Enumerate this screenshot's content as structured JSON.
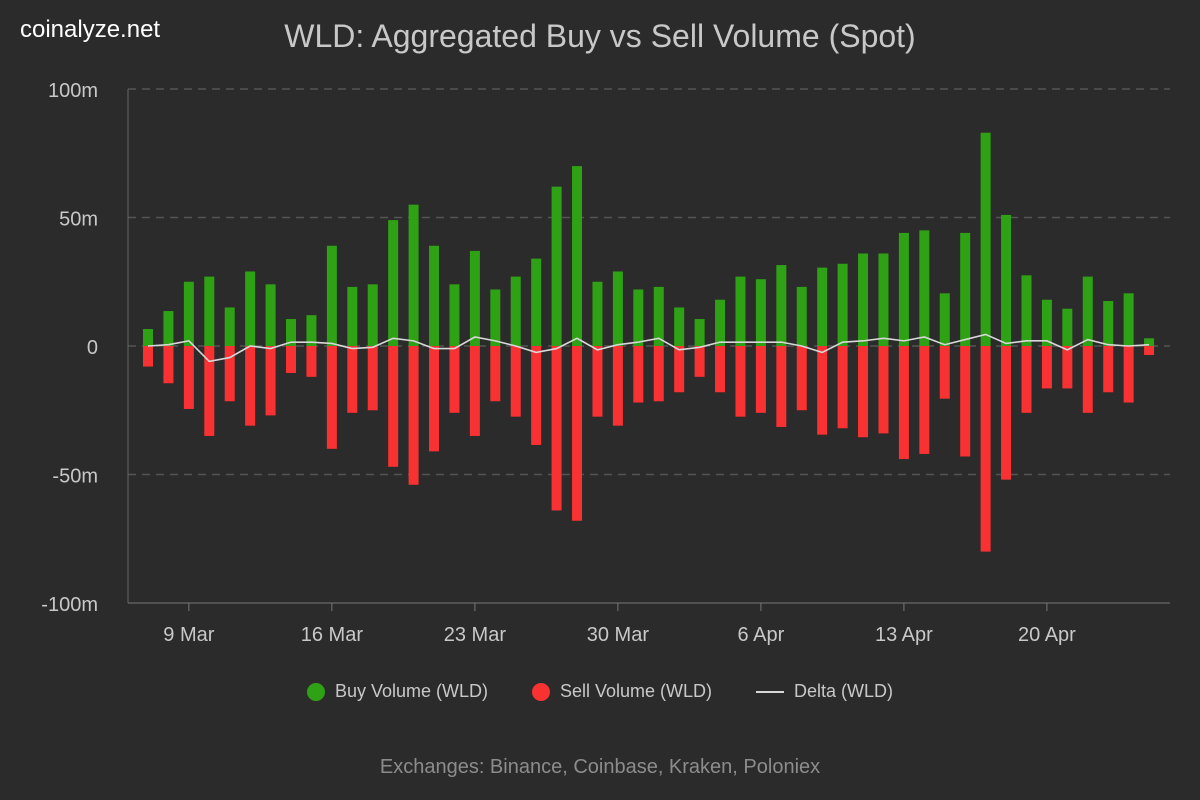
{
  "brand": "coinalyze.net",
  "chart_data": {
    "type": "bar",
    "title": "WLD: Aggregated Buy vs Sell Volume (Spot)",
    "footer": "Exchanges: Binance, Coinbase, Kraken, Poloniex",
    "categories": [
      "7 Mar",
      "8 Mar",
      "9 Mar",
      "10 Mar",
      "11 Mar",
      "12 Mar",
      "13 Mar",
      "14 Mar",
      "15 Mar",
      "16 Mar",
      "17 Mar",
      "18 Mar",
      "19 Mar",
      "20 Mar",
      "21 Mar",
      "22 Mar",
      "23 Mar",
      "24 Mar",
      "25 Mar",
      "26 Mar",
      "27 Mar",
      "28 Mar",
      "29 Mar",
      "30 Mar",
      "31 Mar",
      "1 Apr",
      "2 Apr",
      "3 Apr",
      "4 Apr",
      "5 Apr",
      "6 Apr",
      "7 Apr",
      "8 Apr",
      "9 Apr",
      "10 Apr",
      "11 Apr",
      "12 Apr",
      "13 Apr",
      "14 Apr",
      "15 Apr",
      "16 Apr",
      "17 Apr",
      "18 Apr",
      "19 Apr",
      "20 Apr",
      "21 Apr",
      "22 Apr",
      "23 Apr",
      "24 Apr",
      "25 Apr"
    ],
    "x_tick_labels": [
      "9 Mar",
      "16 Mar",
      "23 Mar",
      "30 Mar",
      "6 Apr",
      "13 Apr",
      "20 Apr"
    ],
    "y_tick_labels": [
      "100m",
      "50m",
      "0",
      "-50m",
      "-100m"
    ],
    "ylim": [
      -100,
      100
    ],
    "y_unit": "m",
    "grid": true,
    "legend_position": "bottom",
    "series": [
      {
        "name": "Buy Volume (WLD)",
        "color": "#2fa115",
        "type": "bar",
        "values": [
          6.6,
          13.6,
          25,
          27,
          15,
          29,
          24,
          10.5,
          12,
          39,
          23,
          24,
          49,
          55,
          39,
          24,
          37,
          22,
          27,
          34,
          62,
          70,
          25,
          29,
          22,
          23,
          15,
          10.5,
          18,
          27,
          26,
          31.5,
          23,
          30.5,
          32,
          36,
          36,
          44,
          45,
          20.5,
          44,
          83,
          51,
          27.5,
          18,
          14.5,
          27,
          17.5,
          20.5,
          3
        ]
      },
      {
        "name": "Sell Volume (WLD)",
        "color": "#f83232",
        "type": "bar",
        "values": [
          -8,
          -14.5,
          -24.5,
          -35,
          -21.5,
          -31,
          -27,
          -10.5,
          -12,
          -40,
          -26,
          -25,
          -47,
          -54,
          -41,
          -26,
          -35,
          -21.5,
          -27.5,
          -38.5,
          -64,
          -68,
          -27.5,
          -31,
          -22,
          -21.5,
          -18,
          -12,
          -18,
          -27.5,
          -26,
          -31.5,
          -25,
          -34.5,
          -32,
          -35.5,
          -34,
          -44,
          -42,
          -20.5,
          -43,
          -80,
          -52,
          -26,
          -16.5,
          -16.5,
          -26,
          -18,
          -22,
          -3.5
        ]
      },
      {
        "name": "Delta (WLD)",
        "color": "#d8d8d8",
        "type": "line",
        "values": [
          0,
          0.5,
          2,
          -6,
          -4.5,
          0,
          -1,
          1.5,
          1.5,
          1,
          -1,
          -0.5,
          3,
          2,
          -1,
          -1,
          3.5,
          2,
          0,
          -2.5,
          -1,
          3,
          -1.5,
          0.5,
          1.5,
          3,
          -1.5,
          -0.5,
          1.5,
          1.5,
          1.5,
          1.5,
          0,
          -2.5,
          1.5,
          2,
          3,
          2,
          3.5,
          0.5,
          2.5,
          4.5,
          1,
          2,
          2,
          -1.5,
          2.5,
          0.5,
          0,
          0.5
        ]
      }
    ]
  }
}
